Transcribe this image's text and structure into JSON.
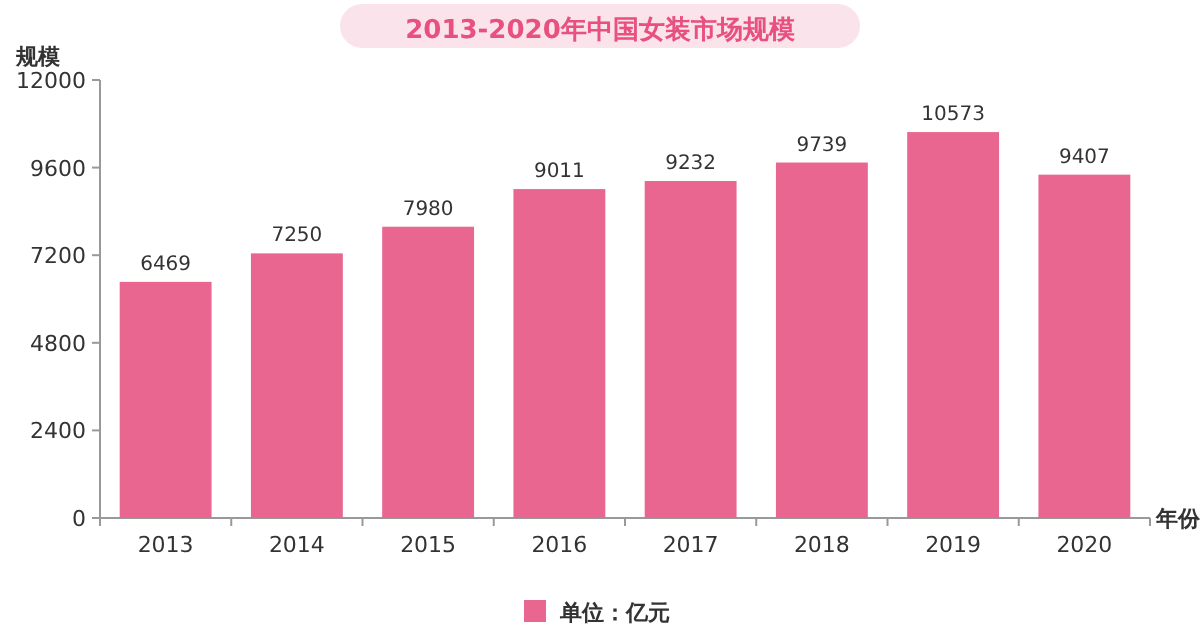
{
  "chart_data": {
    "type": "bar",
    "title": "2013-2020年中国女装市场规模",
    "ylabel": "规模",
    "xlabel": "年份",
    "categories": [
      "2013",
      "2014",
      "2015",
      "2016",
      "2017",
      "2018",
      "2019",
      "2020"
    ],
    "series": [
      {
        "name": "单位：亿元",
        "color": "#e8668f",
        "values": [
          6469,
          7250,
          7980,
          9011,
          9232,
          9739,
          10573,
          9407
        ]
      }
    ],
    "ylim": [
      0,
      12000
    ],
    "yticks": [
      0,
      2400,
      4800,
      7200,
      9600,
      12000
    ],
    "data_labels": true,
    "legend": "bottom",
    "grid": false
  }
}
